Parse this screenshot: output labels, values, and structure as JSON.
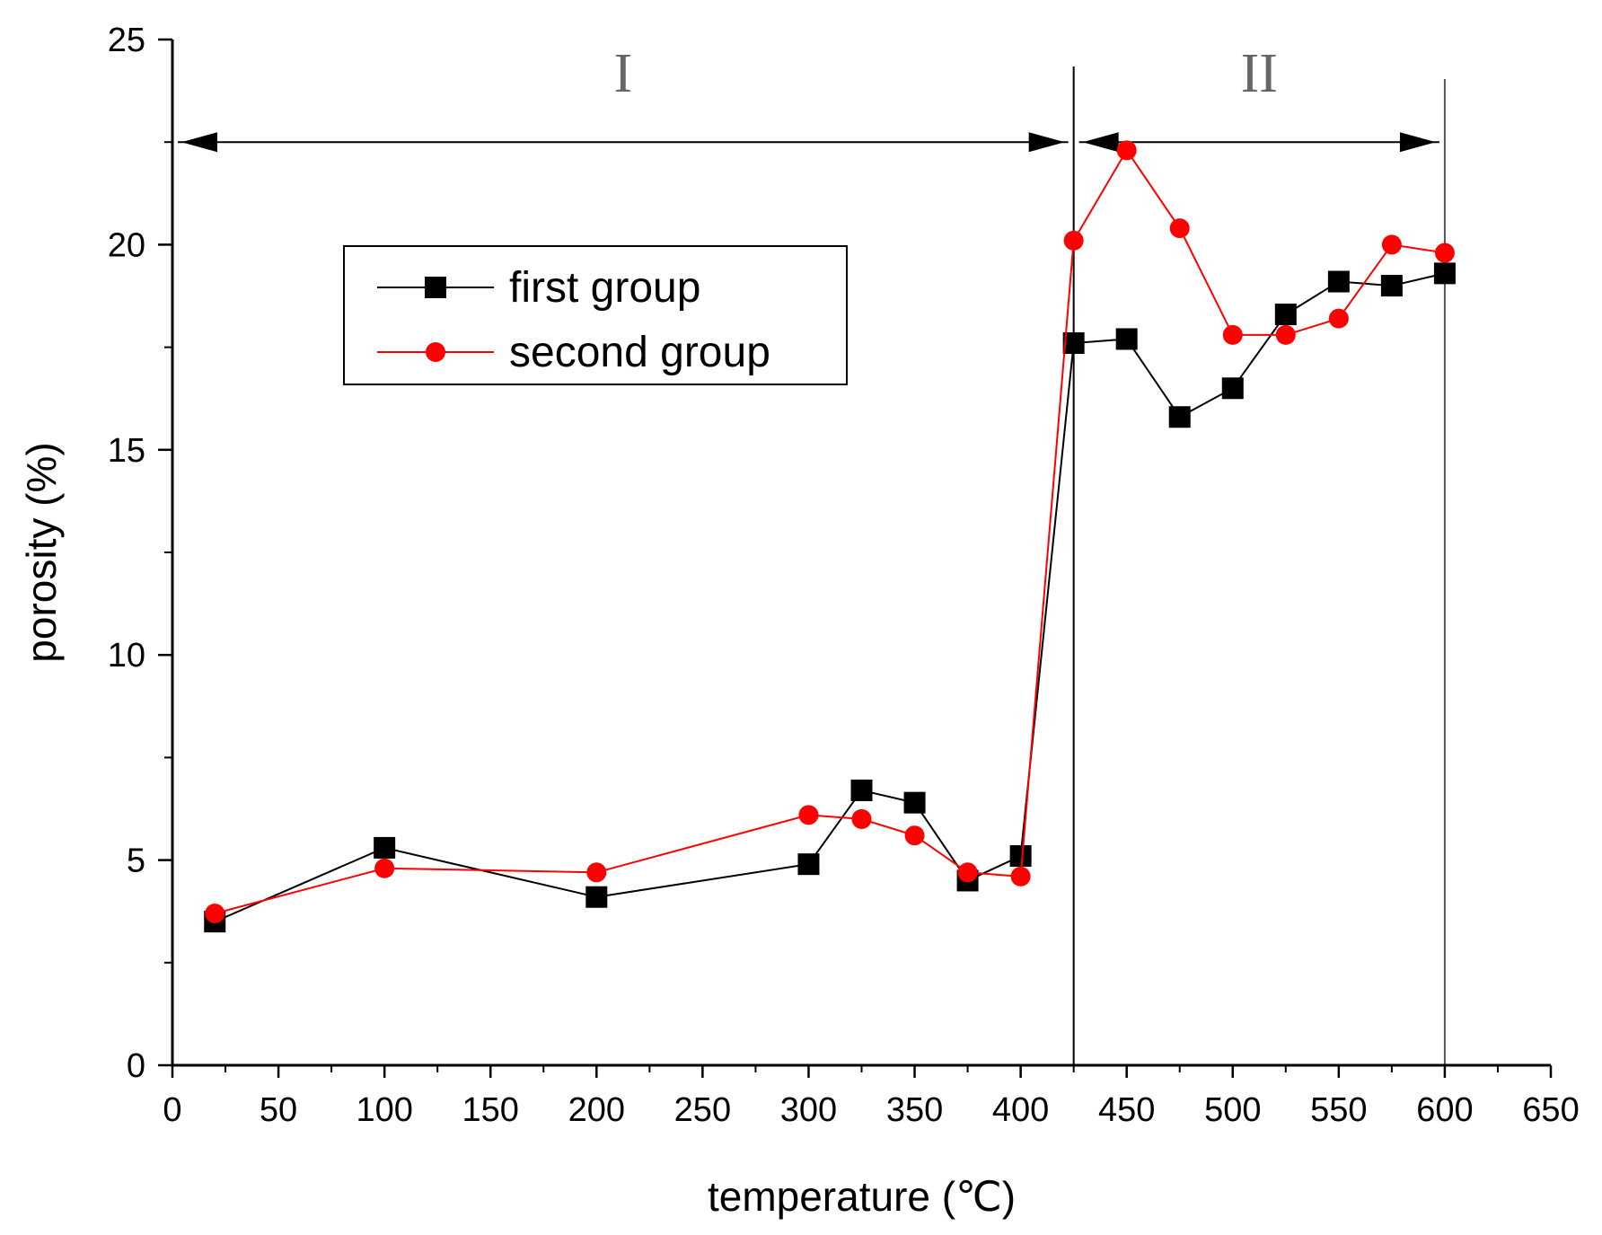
{
  "chart_data": {
    "type": "line",
    "title": "",
    "xlabel": "temperature (℃)",
    "ylabel": "porosity (%)",
    "xlim": [
      0,
      650
    ],
    "ylim": [
      0,
      25
    ],
    "x_ticks": [
      0,
      50,
      100,
      150,
      200,
      250,
      300,
      350,
      400,
      450,
      500,
      550,
      600,
      650
    ],
    "y_ticks": [
      0,
      5,
      10,
      15,
      20,
      25
    ],
    "grid": false,
    "legend_position": "upper-left",
    "series": [
      {
        "name": "first group",
        "color": "#000000",
        "marker": "square",
        "x": [
          20,
          100,
          200,
          300,
          325,
          350,
          375,
          400,
          425,
          450,
          475,
          500,
          525,
          550,
          575,
          600
        ],
        "y": [
          3.5,
          5.3,
          4.1,
          4.9,
          6.7,
          6.4,
          4.5,
          5.1,
          17.6,
          17.7,
          15.8,
          16.5,
          18.3,
          19.1,
          19.0,
          19.3
        ]
      },
      {
        "name": "second group",
        "color": "#ff0000",
        "marker": "circle",
        "x": [
          20,
          100,
          200,
          300,
          325,
          350,
          375,
          400,
          425,
          450,
          475,
          500,
          525,
          550,
          575,
          600
        ],
        "y": [
          3.7,
          4.8,
          4.7,
          6.1,
          6.0,
          5.6,
          4.7,
          4.6,
          20.1,
          22.3,
          20.4,
          17.8,
          17.8,
          18.2,
          20.0,
          19.8
        ]
      }
    ],
    "regions": [
      {
        "label": "I",
        "x_start": 0,
        "x_end": 425
      },
      {
        "label": "II",
        "x_start": 425,
        "x_end": 600
      }
    ],
    "region_arrow_y": 22.5,
    "region_boundaries": [
      425,
      600
    ]
  }
}
